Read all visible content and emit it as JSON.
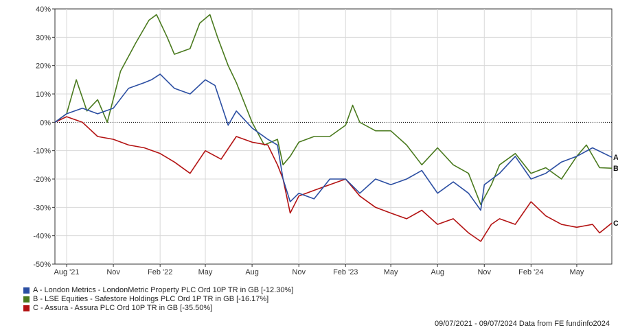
{
  "chart_data": {
    "type": "line",
    "ylim": [
      -50,
      40
    ],
    "y_ticks": [
      "40%",
      "30%",
      "20%",
      "10%",
      "0%",
      "-10%",
      "-20%",
      "-30%",
      "-40%",
      "-50%"
    ],
    "y_tick_values": [
      40,
      30,
      20,
      10,
      0,
      -10,
      -20,
      -30,
      -40,
      -50
    ],
    "x_ticks": [
      "Aug '21",
      "Nov",
      "Feb '22",
      "May",
      "Aug",
      "Nov",
      "Feb '23",
      "May",
      "Aug",
      "Nov",
      "Feb '24",
      "May"
    ],
    "x_tick_dates": [
      "2021-08",
      "2021-11",
      "2022-02",
      "2022-05",
      "2022-08",
      "2022-11",
      "2023-02",
      "2023-05",
      "2023-08",
      "2023-11",
      "2024-02",
      "2024-05"
    ],
    "x_range": [
      "09/07/2021",
      "09/07/2024"
    ],
    "zero_line": true,
    "series": [
      {
        "name": "A - London Metrics - LondonMetric Property PLC Ord 10P TR in GB [-12.30%]",
        "end_label": "A",
        "color": "#2b4ea2",
        "x": [
          "2021-07-09",
          "2021-08-01",
          "2021-09-01",
          "2021-10-01",
          "2021-11-01",
          "2021-12-01",
          "2022-01-01",
          "2022-01-15",
          "2022-02-01",
          "2022-03-01",
          "2022-04-01",
          "2022-05-01",
          "2022-05-20",
          "2022-06-15",
          "2022-07-01",
          "2022-08-01",
          "2022-09-01",
          "2022-09-20",
          "2022-10-01",
          "2022-10-15",
          "2022-11-01",
          "2022-12-01",
          "2023-01-01",
          "2023-02-01",
          "2023-03-01",
          "2023-04-01",
          "2023-05-01",
          "2023-06-01",
          "2023-07-01",
          "2023-08-01",
          "2023-09-01",
          "2023-10-01",
          "2023-10-25",
          "2023-11-01",
          "2023-12-01",
          "2024-01-01",
          "2024-02-01",
          "2024-03-01",
          "2024-04-01",
          "2024-05-01",
          "2024-06-01",
          "2024-07-09"
        ],
        "values": [
          0,
          3,
          5,
          3,
          5,
          12,
          14,
          15,
          17,
          12,
          10,
          15,
          13,
          -1,
          4,
          -2,
          -6,
          -8,
          -20,
          -28,
          -25,
          -27,
          -20,
          -20,
          -25,
          -20,
          -22,
          -20,
          -17,
          -25,
          -21,
          -25,
          -31,
          -22,
          -18,
          -12,
          -20,
          -18,
          -14,
          -12,
          -9,
          -12.3
        ]
      },
      {
        "name": "B - LSE Equities - Safestore Holdings PLC Ord 1P TR in GB [-16.17%]",
        "end_label": "B",
        "color": "#4a7a1e",
        "x": [
          "2021-07-09",
          "2021-08-01",
          "2021-08-20",
          "2021-09-10",
          "2021-10-01",
          "2021-10-20",
          "2021-11-15",
          "2021-12-15",
          "2022-01-10",
          "2022-01-25",
          "2022-02-15",
          "2022-03-01",
          "2022-04-01",
          "2022-04-20",
          "2022-05-10",
          "2022-05-25",
          "2022-06-15",
          "2022-07-01",
          "2022-08-01",
          "2022-08-25",
          "2022-09-20",
          "2022-10-01",
          "2022-10-15",
          "2022-11-01",
          "2022-12-01",
          "2023-01-01",
          "2023-02-01",
          "2023-02-15",
          "2023-03-01",
          "2023-04-01",
          "2023-05-01",
          "2023-06-01",
          "2023-07-01",
          "2023-08-01",
          "2023-09-01",
          "2023-10-01",
          "2023-10-25",
          "2023-11-15",
          "2023-12-01",
          "2024-01-01",
          "2024-02-01",
          "2024-03-01",
          "2024-04-01",
          "2024-05-01",
          "2024-05-20",
          "2024-06-15",
          "2024-07-09"
        ],
        "values": [
          0,
          3,
          15,
          4,
          8,
          0,
          18,
          28,
          36,
          38,
          30,
          24,
          26,
          35,
          38,
          30,
          20,
          14,
          0,
          -8,
          -6,
          -15,
          -12,
          -7,
          -5,
          -5,
          -1,
          6,
          0,
          -3,
          -3,
          -8,
          -15,
          -9,
          -15,
          -18,
          -29,
          -22,
          -15,
          -11,
          -18,
          -16,
          -20,
          -12,
          -8,
          -16,
          -16.17
        ]
      },
      {
        "name": "C - Assura - Assura PLC Ord 10P TR in GB [-35.50%]",
        "end_label": "C",
        "color": "#b31212",
        "x": [
          "2021-07-09",
          "2021-08-01",
          "2021-09-01",
          "2021-10-01",
          "2021-11-01",
          "2021-12-01",
          "2022-01-01",
          "2022-02-01",
          "2022-03-01",
          "2022-04-01",
          "2022-05-01",
          "2022-06-01",
          "2022-07-01",
          "2022-08-01",
          "2022-09-01",
          "2022-09-20",
          "2022-10-01",
          "2022-10-15",
          "2022-11-01",
          "2022-12-01",
          "2023-01-01",
          "2023-02-01",
          "2023-03-01",
          "2023-04-01",
          "2023-05-01",
          "2023-06-01",
          "2023-07-01",
          "2023-08-01",
          "2023-09-01",
          "2023-10-01",
          "2023-10-25",
          "2023-11-15",
          "2023-12-01",
          "2024-01-01",
          "2024-02-01",
          "2024-03-01",
          "2024-04-01",
          "2024-05-01",
          "2024-06-01",
          "2024-06-15",
          "2024-07-09"
        ],
        "values": [
          0,
          2,
          0,
          -5,
          -6,
          -8,
          -9,
          -11,
          -14,
          -18,
          -10,
          -13,
          -5,
          -7,
          -8,
          -15,
          -20,
          -32,
          -26,
          -24,
          -22,
          -20,
          -26,
          -30,
          -32,
          -34,
          -31,
          -36,
          -34,
          -39,
          -42,
          -36,
          -34,
          -36,
          -28,
          -33,
          -36,
          -37,
          -36,
          -39,
          -35.5
        ]
      }
    ]
  },
  "footer": {
    "date_range": "09/07/2021 - 09/07/2024",
    "source": "Data from FE fundinfo2024"
  }
}
